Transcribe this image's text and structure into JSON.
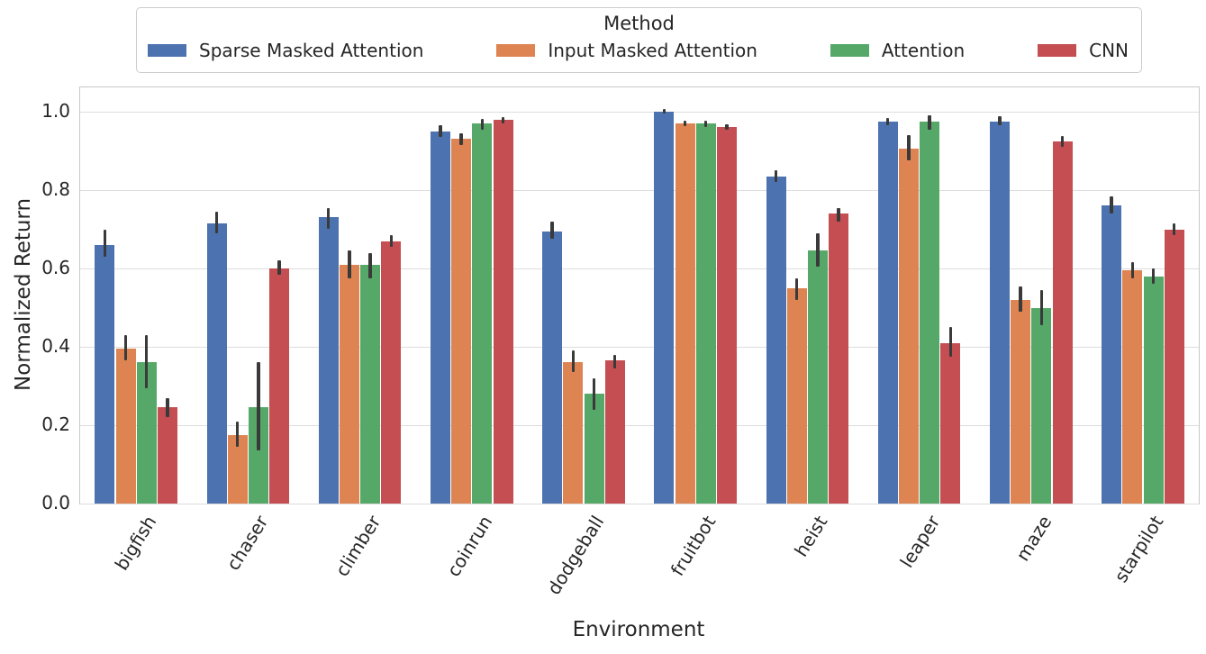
{
  "legend": {
    "title": "Method"
  },
  "chart_data": {
    "type": "bar",
    "title": "",
    "xlabel": "Environment",
    "ylabel": "Normalized Return",
    "ylim": [
      0,
      1.06
    ],
    "yticks": [
      "0.0",
      "0.2",
      "0.4",
      "0.6",
      "0.8",
      "1.0"
    ],
    "ytick_values": [
      0.0,
      0.2,
      0.4,
      0.6,
      0.8,
      1.0
    ],
    "grid": true,
    "legend_position": "top-center",
    "error_bars": true,
    "categories": [
      "bigfish",
      "chaser",
      "climber",
      "coinrun",
      "dodgeball",
      "fruitbot",
      "heist",
      "leaper",
      "maze",
      "starpilot"
    ],
    "series": [
      {
        "name": "Sparse Masked Attention",
        "color": "#4C72B0",
        "values": [
          0.66,
          0.715,
          0.73,
          0.95,
          0.695,
          1.0,
          0.835,
          0.975,
          0.975,
          0.76
        ],
        "err_low": [
          0.63,
          0.69,
          0.7,
          0.935,
          0.675,
          0.995,
          0.82,
          0.965,
          0.965,
          0.74
        ],
        "err_high": [
          0.7,
          0.745,
          0.755,
          0.965,
          0.72,
          1.008,
          0.85,
          0.985,
          0.988,
          0.785
        ]
      },
      {
        "name": "Input Masked Attention",
        "color": "#DD8452",
        "values": [
          0.395,
          0.175,
          0.61,
          0.93,
          0.36,
          0.97,
          0.55,
          0.905,
          0.52,
          0.595
        ],
        "err_low": [
          0.365,
          0.145,
          0.575,
          0.915,
          0.335,
          0.963,
          0.52,
          0.875,
          0.49,
          0.575
        ],
        "err_high": [
          0.43,
          0.21,
          0.645,
          0.945,
          0.39,
          0.977,
          0.575,
          0.94,
          0.555,
          0.615
        ]
      },
      {
        "name": "Attention",
        "color": "#55A868",
        "values": [
          0.36,
          0.245,
          0.61,
          0.97,
          0.28,
          0.97,
          0.645,
          0.975,
          0.5,
          0.58
        ],
        "err_low": [
          0.295,
          0.135,
          0.575,
          0.955,
          0.24,
          0.962,
          0.605,
          0.955,
          0.455,
          0.56
        ],
        "err_high": [
          0.43,
          0.36,
          0.64,
          0.982,
          0.32,
          0.978,
          0.69,
          0.99,
          0.545,
          0.6
        ]
      },
      {
        "name": "CNN",
        "color": "#C44E52",
        "values": [
          0.245,
          0.6,
          0.67,
          0.98,
          0.365,
          0.96,
          0.74,
          0.41,
          0.925,
          0.7
        ],
        "err_low": [
          0.22,
          0.585,
          0.655,
          0.97,
          0.345,
          0.953,
          0.72,
          0.375,
          0.91,
          0.685
        ],
        "err_high": [
          0.27,
          0.62,
          0.685,
          0.987,
          0.38,
          0.967,
          0.755,
          0.45,
          0.937,
          0.715
        ]
      }
    ]
  }
}
